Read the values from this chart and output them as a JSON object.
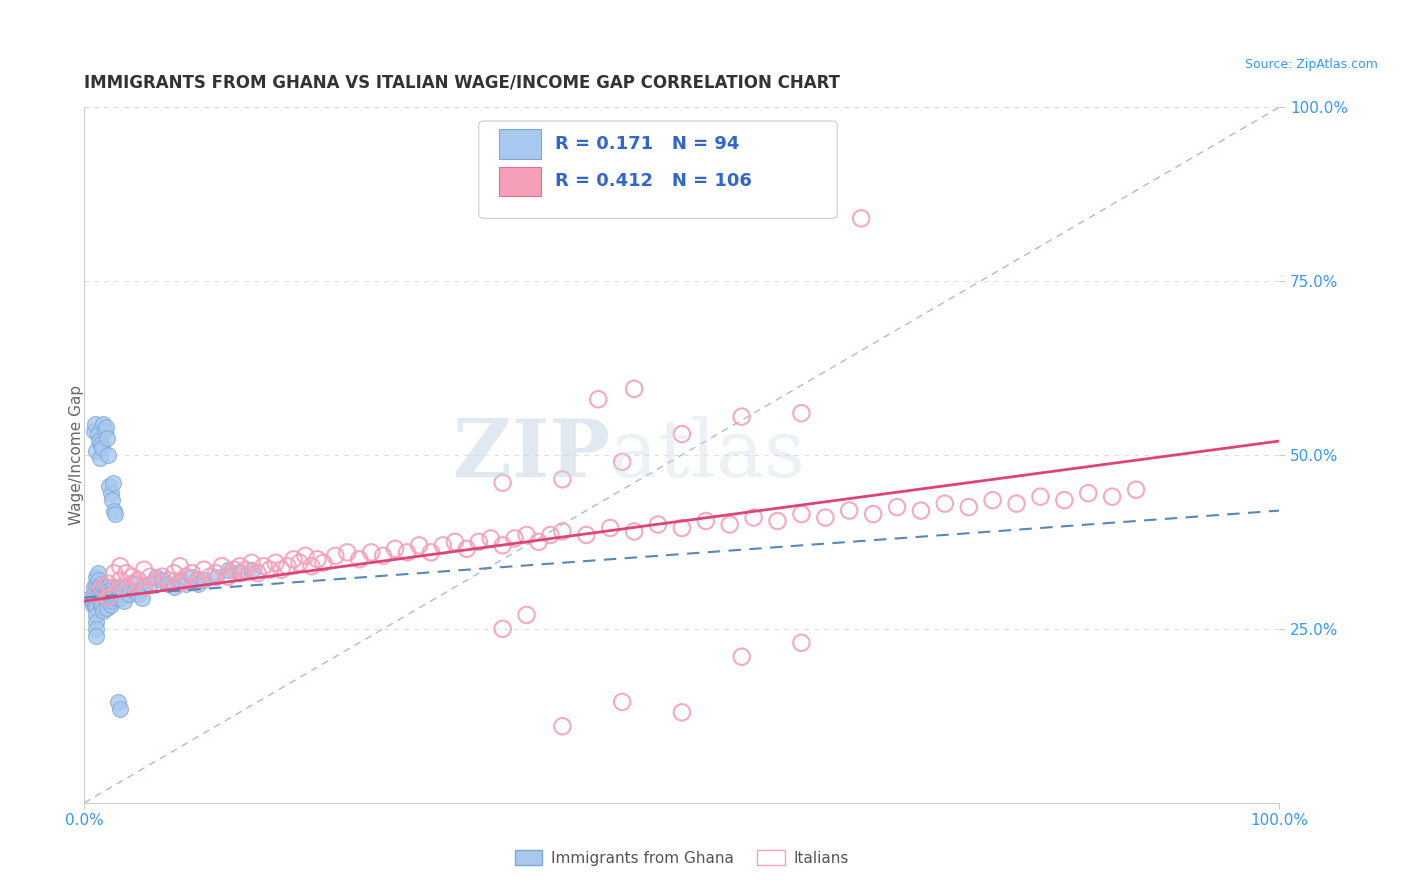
{
  "title": "IMMIGRANTS FROM GHANA VS ITALIAN WAGE/INCOME GAP CORRELATION CHART",
  "source": "Source: ZipAtlas.com",
  "ylabel": "Wage/Income Gap",
  "xlim": [
    0,
    1
  ],
  "ylim": [
    0,
    1
  ],
  "xticklabels": [
    "0.0%",
    "100.0%"
  ],
  "ytick_positions": [
    0.25,
    0.5,
    0.75,
    1.0
  ],
  "ytick_labels": [
    "25.0%",
    "50.0%",
    "75.0%",
    "100.0%"
  ],
  "title_fontsize": 12,
  "title_color": "#333333",
  "axis_color": "#cccccc",
  "grid_color": "#dddddd",
  "watermark_zip": "ZIP",
  "watermark_atlas": "atlas",
  "legend_R_ghana": "0.171",
  "legend_N_ghana": "94",
  "legend_R_italians": "0.412",
  "legend_N_italians": "106",
  "ghana_color": "#a8c8f0",
  "ghana_edge_color": "#7aaad4",
  "italian_color": "#f5a0b8",
  "italian_edge_color": "#e07090",
  "ghana_line_color": "#5588bb",
  "italian_line_color": "#dd4477",
  "ref_line_color": "#aabbdd",
  "legend_text_color": "#3366cc",
  "tick_color": "#3399ff",
  "ghana_trend_x": [
    0.0,
    1.0
  ],
  "ghana_trend_y": [
    0.295,
    0.42
  ],
  "italian_trend_x": [
    0.0,
    1.0
  ],
  "italian_trend_y": [
    0.29,
    0.52
  ],
  "ref_line_x": [
    0.0,
    1.0
  ],
  "ref_line_y": [
    0.0,
    1.0
  ],
  "ghana_scatter_x": [
    0.005,
    0.006,
    0.007,
    0.008,
    0.008,
    0.009,
    0.009,
    0.01,
    0.01,
    0.01,
    0.01,
    0.01,
    0.01,
    0.01,
    0.01,
    0.011,
    0.011,
    0.012,
    0.012,
    0.013,
    0.013,
    0.014,
    0.014,
    0.015,
    0.015,
    0.015,
    0.016,
    0.016,
    0.017,
    0.017,
    0.018,
    0.018,
    0.019,
    0.019,
    0.02,
    0.02,
    0.02,
    0.021,
    0.022,
    0.022,
    0.023,
    0.023,
    0.024,
    0.025,
    0.025,
    0.026,
    0.027,
    0.028,
    0.03,
    0.031,
    0.032,
    0.033,
    0.035,
    0.037,
    0.04,
    0.042,
    0.045,
    0.048,
    0.05,
    0.055,
    0.06,
    0.065,
    0.07,
    0.075,
    0.08,
    0.085,
    0.09,
    0.095,
    0.1,
    0.11,
    0.12,
    0.13,
    0.14,
    0.008,
    0.009,
    0.01,
    0.011,
    0.012,
    0.013,
    0.014,
    0.015,
    0.016,
    0.017,
    0.018,
    0.019,
    0.02,
    0.021,
    0.022,
    0.023,
    0.024,
    0.025,
    0.026,
    0.028,
    0.03
  ],
  "ghana_scatter_y": [
    0.295,
    0.29,
    0.285,
    0.3,
    0.31,
    0.285,
    0.295,
    0.305,
    0.315,
    0.325,
    0.28,
    0.27,
    0.26,
    0.25,
    0.24,
    0.33,
    0.32,
    0.31,
    0.3,
    0.295,
    0.29,
    0.285,
    0.315,
    0.305,
    0.295,
    0.285,
    0.275,
    0.31,
    0.305,
    0.295,
    0.3,
    0.31,
    0.29,
    0.28,
    0.295,
    0.31,
    0.305,
    0.3,
    0.295,
    0.285,
    0.29,
    0.3,
    0.31,
    0.295,
    0.305,
    0.3,
    0.295,
    0.31,
    0.305,
    0.295,
    0.3,
    0.29,
    0.31,
    0.3,
    0.315,
    0.305,
    0.3,
    0.295,
    0.31,
    0.315,
    0.325,
    0.32,
    0.315,
    0.31,
    0.32,
    0.315,
    0.325,
    0.315,
    0.32,
    0.325,
    0.335,
    0.33,
    0.335,
    0.535,
    0.545,
    0.505,
    0.53,
    0.52,
    0.495,
    0.515,
    0.51,
    0.545,
    0.535,
    0.54,
    0.525,
    0.5,
    0.455,
    0.445,
    0.435,
    0.46,
    0.42,
    0.415,
    0.145,
    0.135
  ],
  "italian_scatter_x": [
    0.01,
    0.015,
    0.02,
    0.02,
    0.025,
    0.03,
    0.03,
    0.035,
    0.035,
    0.04,
    0.04,
    0.045,
    0.05,
    0.05,
    0.055,
    0.06,
    0.065,
    0.07,
    0.075,
    0.08,
    0.08,
    0.085,
    0.09,
    0.095,
    0.1,
    0.105,
    0.11,
    0.115,
    0.12,
    0.125,
    0.13,
    0.13,
    0.135,
    0.14,
    0.145,
    0.15,
    0.155,
    0.16,
    0.165,
    0.17,
    0.175,
    0.18,
    0.185,
    0.19,
    0.195,
    0.2,
    0.21,
    0.22,
    0.23,
    0.24,
    0.25,
    0.26,
    0.27,
    0.28,
    0.29,
    0.3,
    0.31,
    0.32,
    0.33,
    0.34,
    0.35,
    0.36,
    0.37,
    0.38,
    0.39,
    0.4,
    0.42,
    0.44,
    0.46,
    0.48,
    0.5,
    0.52,
    0.54,
    0.56,
    0.58,
    0.6,
    0.62,
    0.64,
    0.66,
    0.68,
    0.7,
    0.72,
    0.74,
    0.76,
    0.78,
    0.8,
    0.82,
    0.84,
    0.86,
    0.88,
    0.35,
    0.4,
    0.45,
    0.5,
    0.55,
    0.6,
    0.43,
    0.46,
    0.35,
    0.37,
    0.45,
    0.5,
    0.55,
    0.6,
    0.4,
    0.65
  ],
  "italian_scatter_y": [
    0.3,
    0.31,
    0.295,
    0.315,
    0.33,
    0.32,
    0.34,
    0.31,
    0.33,
    0.315,
    0.325,
    0.32,
    0.31,
    0.335,
    0.325,
    0.315,
    0.325,
    0.32,
    0.33,
    0.315,
    0.34,
    0.325,
    0.33,
    0.32,
    0.335,
    0.325,
    0.33,
    0.34,
    0.325,
    0.335,
    0.33,
    0.34,
    0.335,
    0.345,
    0.33,
    0.34,
    0.335,
    0.345,
    0.335,
    0.34,
    0.35,
    0.345,
    0.355,
    0.34,
    0.35,
    0.345,
    0.355,
    0.36,
    0.35,
    0.36,
    0.355,
    0.365,
    0.36,
    0.37,
    0.36,
    0.37,
    0.375,
    0.365,
    0.375,
    0.38,
    0.37,
    0.38,
    0.385,
    0.375,
    0.385,
    0.39,
    0.385,
    0.395,
    0.39,
    0.4,
    0.395,
    0.405,
    0.4,
    0.41,
    0.405,
    0.415,
    0.41,
    0.42,
    0.415,
    0.425,
    0.42,
    0.43,
    0.425,
    0.435,
    0.43,
    0.44,
    0.435,
    0.445,
    0.44,
    0.45,
    0.46,
    0.465,
    0.49,
    0.53,
    0.555,
    0.56,
    0.58,
    0.595,
    0.25,
    0.27,
    0.145,
    0.13,
    0.21,
    0.23,
    0.11,
    0.84
  ]
}
